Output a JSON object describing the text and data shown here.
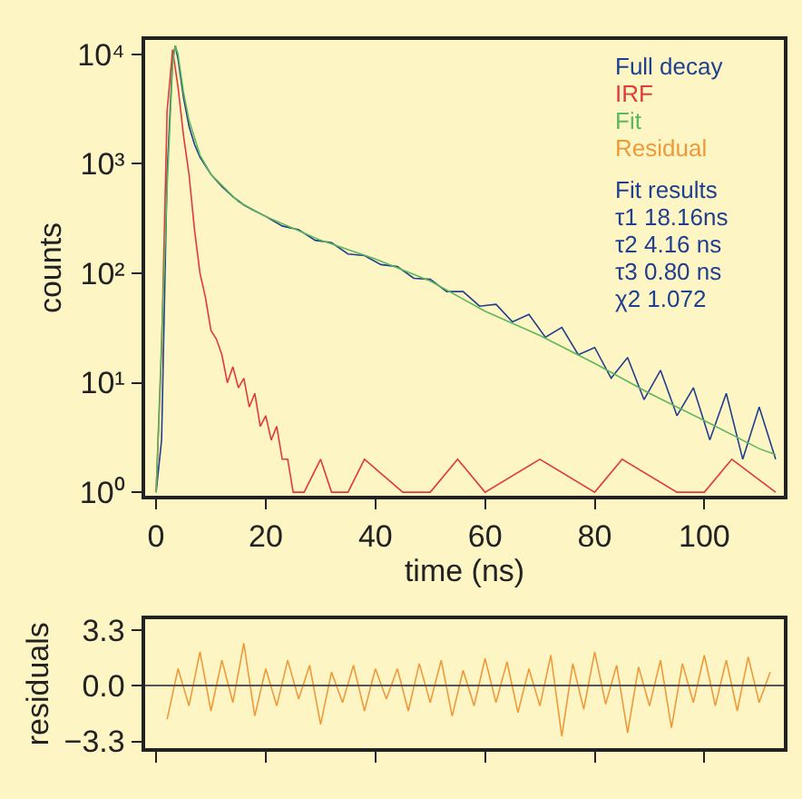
{
  "chart_data": [
    {
      "type": "line",
      "ylabel": "counts",
      "xlabel": "time (ns)",
      "log": "y",
      "legend": "top right",
      "marker": "none",
      "line_style": "solid",
      "grid": false,
      "xlim": [
        -2,
        114.5
      ],
      "xticks": [
        0,
        20,
        40,
        60,
        80,
        100
      ],
      "ylim": [
        0.93,
        13500
      ],
      "yticks": [
        {
          "value": 1,
          "label": "10⁰"
        },
        {
          "value": 10,
          "label": "10¹"
        },
        {
          "value": 100,
          "label": "10²"
        },
        {
          "value": 1000,
          "label": "10³"
        },
        {
          "value": 10000,
          "label": "10⁴"
        }
      ],
      "annotations": [
        "Fit results",
        "τ1 18.16ns",
        "τ2 4.16 ns",
        "τ3 0.80 ns",
        "χ2 1.072"
      ],
      "series": [
        {
          "name": "Full decay",
          "color": "#1f3f8f",
          "x": [
            0,
            1,
            2,
            3,
            3.5,
            4,
            5,
            6,
            7,
            8,
            10,
            12,
            14,
            16,
            18,
            20,
            23,
            26,
            29,
            32,
            35,
            38,
            41,
            44,
            47,
            50,
            53,
            56,
            59,
            62,
            65,
            68,
            71,
            74,
            77,
            80,
            83,
            86,
            89,
            92,
            95,
            98,
            101,
            104,
            107,
            110,
            113
          ],
          "values": [
            1,
            3,
            800,
            9000,
            12000,
            9000,
            4000,
            2200,
            1500,
            1150,
            800,
            620,
            500,
            420,
            370,
            330,
            270,
            250,
            200,
            190,
            150,
            145,
            120,
            115,
            90,
            88,
            68,
            68,
            50,
            52,
            36,
            42,
            26,
            32,
            18,
            21,
            11,
            17,
            7,
            13,
            5,
            9,
            3,
            8,
            2,
            6,
            2
          ]
        },
        {
          "name": "IRF",
          "color": "#e03a3a",
          "x": [
            0,
            1,
            2,
            3,
            4,
            5,
            6,
            7,
            8,
            9,
            10,
            11,
            12,
            13,
            14,
            15,
            16,
            17,
            18,
            19,
            20,
            21,
            22,
            23,
            24,
            25,
            27,
            30,
            32,
            35,
            38,
            45,
            50,
            55,
            60,
            70,
            80,
            85,
            95,
            100,
            105,
            113
          ],
          "values": [
            1,
            20,
            3000,
            11000,
            5000,
            1800,
            800,
            250,
            100,
            60,
            30,
            25,
            18,
            10,
            14,
            9,
            11,
            6,
            8,
            4,
            5,
            3,
            4,
            2,
            2,
            1,
            1,
            2,
            1,
            1,
            2,
            1,
            1,
            2,
            1,
            2,
            1,
            2,
            1,
            1,
            2,
            1
          ]
        },
        {
          "name": "Fit",
          "color": "#5cb85c",
          "x": [
            0,
            2,
            3,
            3.5,
            4,
            5,
            6,
            8,
            10,
            15,
            20,
            30,
            40,
            50,
            60,
            70,
            80,
            90,
            100,
            110,
            113
          ],
          "values": [
            1,
            600,
            8000,
            12000,
            10000,
            4500,
            2500,
            1200,
            800,
            450,
            330,
            200,
            135,
            85,
            45,
            27,
            15,
            8,
            4.5,
            2.5,
            2.2
          ]
        }
      ]
    },
    {
      "type": "line",
      "ylabel": "residuals",
      "tick_labels": "y",
      "marker": "none",
      "line_style": "solid",
      "grid": false,
      "xlim": [
        -2,
        114.5
      ],
      "xticks": [
        {
          "value": 0,
          "label": null
        },
        {
          "value": 20,
          "label": null
        },
        {
          "value": 40,
          "label": null
        },
        {
          "value": 60,
          "label": null
        },
        {
          "value": 80,
          "label": null
        },
        {
          "value": 100,
          "label": null
        }
      ],
      "ylim": [
        -3.7,
        3.9
      ],
      "yticks": [
        {
          "value": -3.3,
          "label": "−3.3"
        },
        {
          "value": 0,
          "label": "0.0"
        },
        3.3
      ],
      "ref_lines": [
        {
          "axis": "y",
          "value": 0,
          "color": "#555555"
        }
      ],
      "series": [
        {
          "name": "Residual",
          "color": "#ee9a3a",
          "x": [
            2,
            4,
            6,
            8,
            10,
            12,
            14,
            16,
            18,
            20,
            22,
            24,
            26,
            28,
            30,
            32,
            34,
            36,
            38,
            40,
            42,
            44,
            46,
            48,
            50,
            52,
            54,
            56,
            58,
            60,
            62,
            64,
            66,
            68,
            70,
            72,
            74,
            76,
            78,
            80,
            82,
            84,
            86,
            88,
            90,
            92,
            94,
            96,
            98,
            100,
            102,
            104,
            106,
            108,
            110,
            112
          ],
          "values": [
            -2.0,
            1.0,
            -1.2,
            2.0,
            -1.5,
            1.5,
            -1.0,
            2.5,
            -1.8,
            1.0,
            -1.2,
            1.5,
            -0.8,
            1.2,
            -2.3,
            0.8,
            -1.0,
            1.2,
            -1.5,
            1.0,
            -0.8,
            1.0,
            -1.5,
            1.3,
            -1.0,
            1.5,
            -1.8,
            0.9,
            -1.2,
            1.6,
            -1.0,
            1.4,
            -1.6,
            1.0,
            -1.2,
            1.8,
            -3.0,
            1.3,
            -1.4,
            2.0,
            -1.1,
            1.2,
            -2.8,
            1.1,
            -1.2,
            1.5,
            -2.5,
            1.3,
            -1.0,
            1.8,
            -1.2,
            1.5,
            -1.5,
            1.7,
            -1.0,
            0.8
          ]
        }
      ]
    }
  ]
}
